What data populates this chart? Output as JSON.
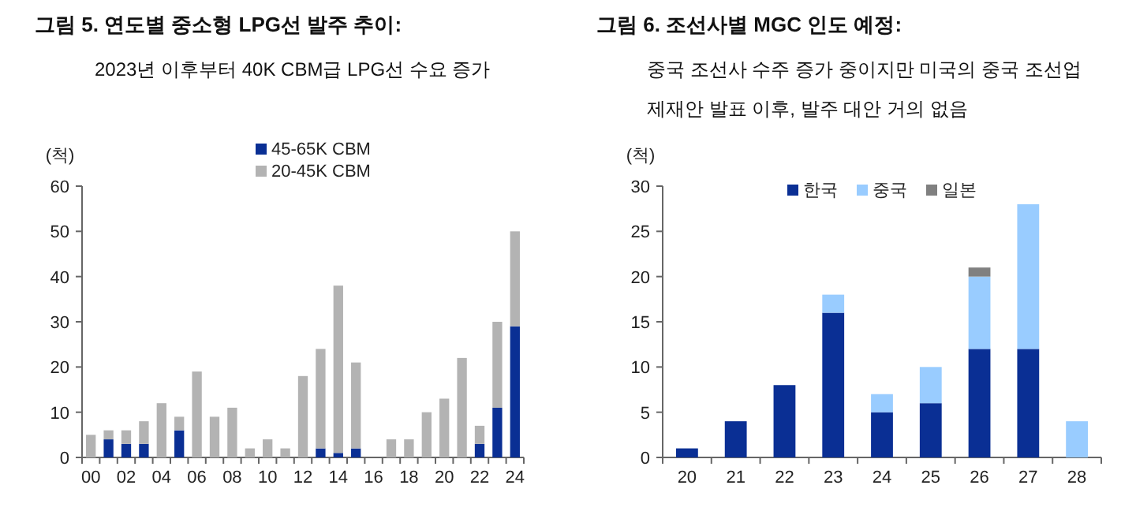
{
  "chart_data": [
    {
      "type": "bar",
      "title": "그림 5. 연도별 중소형 LPG선 발주 추이:",
      "subtitle": "2023년 이후부터 40K CBM급 LPG선 수요 증가",
      "ylabel": "(척)",
      "stacked": true,
      "legend": "top",
      "grid": false,
      "categories": [
        "00",
        null,
        "02",
        null,
        "04",
        null,
        "06",
        null,
        "08",
        null,
        "10",
        null,
        "12",
        null,
        "14",
        null,
        "16",
        null,
        "18",
        null,
        "20",
        null,
        "22",
        null,
        "24"
      ],
      "ylim": [
        0,
        60
      ],
      "yticks": [
        0,
        10,
        20,
        30,
        40,
        50,
        60
      ],
      "series": [
        {
          "name": "45-65K CBM",
          "color": "#0a2f94",
          "values": [
            0,
            4,
            3,
            3,
            0,
            6,
            0,
            0,
            0,
            0,
            0,
            0,
            0,
            2,
            1,
            2,
            0,
            0,
            0,
            0,
            0,
            0,
            3,
            11,
            29
          ]
        },
        {
          "name": "20-45K CBM",
          "color": "#b3b3b3",
          "values": [
            5,
            2,
            3,
            5,
            12,
            3,
            19,
            9,
            11,
            2,
            4,
            2,
            18,
            22,
            37,
            19,
            0,
            4,
            4,
            10,
            13,
            22,
            4,
            19,
            21
          ]
        }
      ]
    },
    {
      "type": "bar",
      "title": "그림 6. 조선사별 MGC 인도 예정:",
      "subtitle": "중국 조선사 수주 증가 중이지만 미국의 중국 조선업\n제재안 발표 이후, 발주 대안 거의 없음",
      "ylabel": "(척)",
      "stacked": true,
      "legend": "top",
      "grid": false,
      "categories": [
        "20",
        "21",
        "22",
        "23",
        "24",
        "25",
        "26",
        "27",
        "28"
      ],
      "ylim": [
        0,
        30
      ],
      "yticks": [
        0,
        5,
        10,
        15,
        20,
        25,
        30
      ],
      "series": [
        {
          "name": "한국",
          "color": "#0a2f94",
          "values": [
            1,
            4,
            8,
            16,
            5,
            6,
            12,
            12,
            0
          ]
        },
        {
          "name": "중국",
          "color": "#99ccff",
          "values": [
            0,
            0,
            0,
            2,
            2,
            4,
            8,
            16,
            4
          ]
        },
        {
          "name": "일본",
          "color": "#808080",
          "values": [
            0,
            0,
            0,
            0,
            0,
            0,
            1,
            0,
            0
          ]
        }
      ]
    }
  ]
}
